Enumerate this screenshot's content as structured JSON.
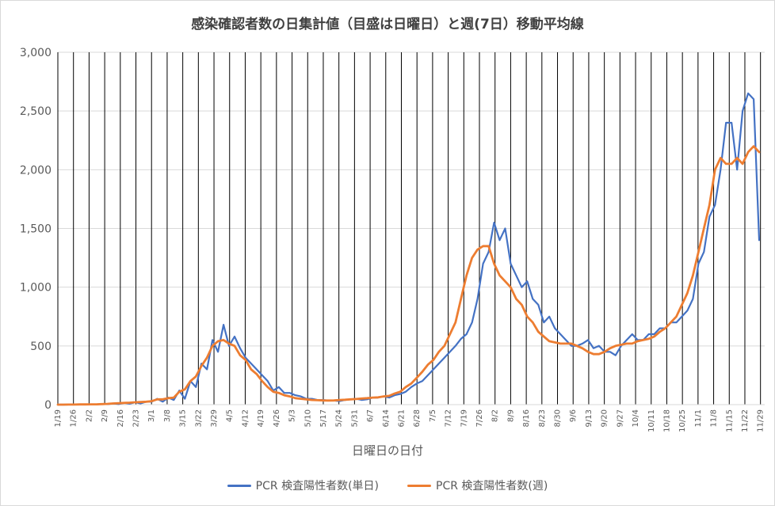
{
  "chart_data": {
    "type": "line",
    "title": "感染確認者数の日集計値（目盛は日曜日）と週(7日）移動平均線",
    "xlabel": "日曜日の日付",
    "ylabel": "",
    "ylim": [
      0,
      3000
    ],
    "yticks": [
      0,
      500,
      1000,
      1500,
      2000,
      2500,
      3000
    ],
    "ytick_labels": [
      "0",
      "500",
      "1,000",
      "1,500",
      "2,000",
      "2,500",
      "3,000"
    ],
    "grid": "horizontal light gridlines; vertical black lines at each Sunday",
    "legend_position": "bottom",
    "x_ticks": [
      "1/19",
      "1/26",
      "2/2",
      "2/9",
      "2/16",
      "2/23",
      "3/1",
      "3/8",
      "3/15",
      "3/22",
      "3/29",
      "4/5",
      "4/12",
      "4/19",
      "4/26",
      "5/3",
      "5/10",
      "5/17",
      "5/24",
      "5/31",
      "6/7",
      "6/14",
      "6/21",
      "6/28",
      "7/5",
      "7/12",
      "7/19",
      "7/26",
      "8/2",
      "8/9",
      "8/16",
      "8/23",
      "8/30",
      "9/6",
      "9/13",
      "9/20",
      "9/27",
      "10/4",
      "10/11",
      "10/18",
      "10/25",
      "11/1",
      "11/8",
      "11/15",
      "11/22",
      "11/29"
    ],
    "series": [
      {
        "name": "PCR 検査陽性者数(単日)",
        "color": "#4472c4",
        "weekly_values": [
          [
            0,
            0
          ],
          [
            1,
            1
          ],
          [
            2,
            2
          ],
          [
            3,
            3
          ],
          [
            5,
            4
          ],
          [
            10,
            5
          ],
          [
            15,
            8
          ],
          [
            20,
            10
          ],
          [
            25,
            25
          ],
          [
            50,
            25
          ],
          [
            60,
            40
          ],
          [
            120,
            50
          ],
          [
            200,
            150
          ],
          [
            350,
            300
          ],
          [
            550,
            450
          ],
          [
            680,
            500
          ],
          [
            580,
            480
          ],
          [
            400,
            350
          ],
          [
            300,
            250
          ],
          [
            200,
            120
          ],
          [
            150,
            100
          ],
          [
            100,
            80
          ],
          [
            70,
            50
          ],
          [
            50,
            40
          ],
          [
            40,
            35
          ],
          [
            35,
            30
          ],
          [
            40,
            45
          ],
          [
            50,
            40
          ],
          [
            45,
            60
          ],
          [
            60,
            70
          ],
          [
            60,
            80
          ],
          [
            90,
            110
          ],
          [
            150,
            180
          ],
          [
            200,
            250
          ],
          [
            300,
            350
          ],
          [
            400,
            450
          ],
          [
            500,
            560
          ],
          [
            600,
            700
          ],
          [
            900,
            1200
          ],
          [
            1300,
            1550
          ],
          [
            1400,
            1500
          ],
          [
            1200,
            1100
          ],
          [
            1000,
            1050
          ],
          [
            900,
            850
          ],
          [
            700,
            750
          ],
          [
            650,
            600
          ],
          [
            550,
            500
          ],
          [
            500,
            520
          ],
          [
            550,
            480
          ],
          [
            500,
            450
          ],
          [
            450,
            420
          ],
          [
            500,
            550
          ],
          [
            600,
            550
          ],
          [
            550,
            600
          ],
          [
            600,
            650
          ],
          [
            650,
            700
          ],
          [
            700,
            750
          ],
          [
            800,
            900
          ],
          [
            1200,
            1300
          ],
          [
            1600,
            1700
          ],
          [
            2000,
            2400
          ],
          [
            2400,
            2000
          ],
          [
            2500,
            2650
          ],
          [
            2600,
            1400
          ]
        ]
      },
      {
        "name": "PCR 検査陽性者数(週)",
        "color": "#ed7d31",
        "weekly_values": [
          [
            0,
            0
          ],
          [
            1,
            1
          ],
          [
            2,
            2
          ],
          [
            3,
            3
          ],
          [
            5,
            7
          ],
          [
            10,
            12
          ],
          [
            15,
            17
          ],
          [
            20,
            22
          ],
          [
            25,
            30
          ],
          [
            45,
            45
          ],
          [
            55,
            60
          ],
          [
            110,
            130
          ],
          [
            200,
            240
          ],
          [
            330,
            400
          ],
          [
            500,
            540
          ],
          [
            550,
            520
          ],
          [
            500,
            420
          ],
          [
            380,
            300
          ],
          [
            260,
            200
          ],
          [
            150,
            110
          ],
          [
            100,
            80
          ],
          [
            70,
            55
          ],
          [
            50,
            45
          ],
          [
            40,
            38
          ],
          [
            36,
            35
          ],
          [
            36,
            40
          ],
          [
            42,
            45
          ],
          [
            48,
            52
          ],
          [
            55,
            60
          ],
          [
            62,
            70
          ],
          [
            75,
            95
          ],
          [
            110,
            150
          ],
          [
            180,
            230
          ],
          [
            280,
            340
          ],
          [
            380,
            450
          ],
          [
            500,
            600
          ],
          [
            700,
            900
          ],
          [
            1100,
            1250
          ],
          [
            1320,
            1350
          ],
          [
            1350,
            1200
          ],
          [
            1100,
            1050
          ],
          [
            1000,
            900
          ],
          [
            850,
            750
          ],
          [
            700,
            620
          ],
          [
            580,
            540
          ],
          [
            530,
            520
          ],
          [
            520,
            520
          ],
          [
            500,
            480
          ],
          [
            450,
            430
          ],
          [
            430,
            450
          ],
          [
            480,
            500
          ],
          [
            510,
            520
          ],
          [
            520,
            540
          ],
          [
            550,
            560
          ],
          [
            580,
            620
          ],
          [
            650,
            700
          ],
          [
            750,
            850
          ],
          [
            950,
            1100
          ],
          [
            1300,
            1500
          ],
          [
            1700,
            2000
          ],
          [
            2100,
            2050
          ],
          [
            2050,
            2100
          ],
          [
            2050,
            2150
          ],
          [
            2200,
            2150
          ]
        ]
      }
    ]
  }
}
